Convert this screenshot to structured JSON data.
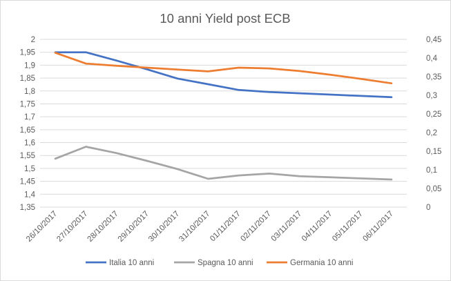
{
  "chart_data": {
    "type": "line",
    "title": "10 anni Yield post ECB",
    "categories": [
      "26/10/2017",
      "27/10/2017",
      "28/10/2017",
      "29/10/2017",
      "30/10/2017",
      "31/10/2017",
      "01/11/2017",
      "02/11/2017",
      "03/11/2017",
      "04/11/2017",
      "05/11/2017",
      "06/11/2017"
    ],
    "left_axis": {
      "min": 1.35,
      "max": 2,
      "step": 0.05,
      "ticks": [
        "1,35",
        "1,4",
        "1,45",
        "1,5",
        "1,55",
        "1,6",
        "1,65",
        "1,7",
        "1,75",
        "1,8",
        "1,85",
        "1,9",
        "1,95",
        "2"
      ]
    },
    "right_axis": {
      "min": 0,
      "max": 0.45,
      "step": 0.05,
      "ticks": [
        "0",
        "0,05",
        "0,1",
        "0,15",
        "0,2",
        "0,25",
        "0,3",
        "0,35",
        "0,4",
        "0,45"
      ]
    },
    "grid": true,
    "legend_position": "bottom",
    "series": [
      {
        "name": "Italia 10 anni",
        "axis": "left",
        "color": "#4472c4",
        "values": [
          1.95,
          1.95,
          1.918,
          1.884,
          1.848,
          1.826,
          1.804,
          1.796,
          1.791,
          1.786,
          1.781,
          1.776
        ]
      },
      {
        "name": "Spagna 10 anni",
        "axis": "right",
        "color": "#a5a5a5",
        "values": [
          0.13,
          0.162,
          0.145,
          0.124,
          0.102,
          0.076,
          0.085,
          0.09,
          0.083,
          0.08,
          0.077,
          0.074
        ]
      },
      {
        "name": "Germania 10 anni",
        "axis": "right",
        "color": "#ed7d31",
        "values": [
          0.414,
          0.385,
          0.379,
          0.374,
          0.369,
          0.364,
          0.374,
          0.372,
          0.365,
          0.355,
          0.344,
          0.332
        ]
      }
    ]
  }
}
